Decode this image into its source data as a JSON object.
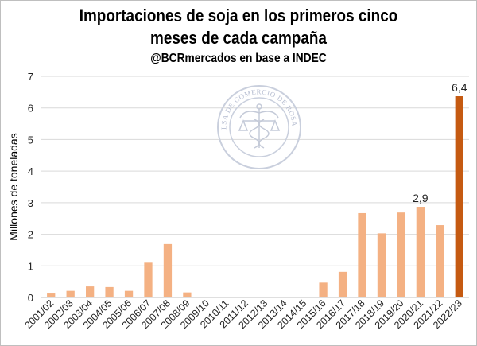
{
  "chart_data": {
    "type": "bar",
    "title_line1": "Importaciones de soja en los primeros cinco",
    "title_line2": "meses de cada campaña",
    "subtitle": "@BCRmercados en base a INDEC",
    "ylabel": "Millones de toneladas",
    "xlabel": "",
    "ylim": [
      0,
      7
    ],
    "yticks": [
      0,
      1,
      2,
      3,
      4,
      5,
      6,
      7
    ],
    "grid": true,
    "categories": [
      "2001/02",
      "2002/03",
      "2003/04",
      "2004/05",
      "2005/06",
      "2006/07",
      "2007/08",
      "2008/09",
      "2009/10",
      "2010/11",
      "2011/12",
      "2012/13",
      "2013/14",
      "2014/15",
      "2015/16",
      "2016/17",
      "2017/18",
      "2018/19",
      "2019/20",
      "2020/21",
      "2021/22",
      "2022/23"
    ],
    "series": [
      {
        "values": [
          0.15,
          0.21,
          0.35,
          0.33,
          0.21,
          1.1,
          1.69,
          0.16,
          0.0,
          0.02,
          0.0,
          0.02,
          0.0,
          0.0,
          0.47,
          0.81,
          2.67,
          2.03,
          2.69,
          2.87,
          2.29,
          6.37
        ]
      }
    ],
    "data_labels": [
      {
        "category": "2020/21",
        "text": "2,9"
      },
      {
        "category": "2022/23",
        "text": "6,4"
      }
    ],
    "colors": {
      "bar": "#f4b183",
      "highlight": "#c55a11",
      "grid": "#d9d9d9"
    },
    "highlight_category": "2022/23",
    "watermark": {
      "text": "BOLSA DE COMERCIO DE ROSARIO",
      "icon": "caduceus-seal-icon"
    }
  }
}
